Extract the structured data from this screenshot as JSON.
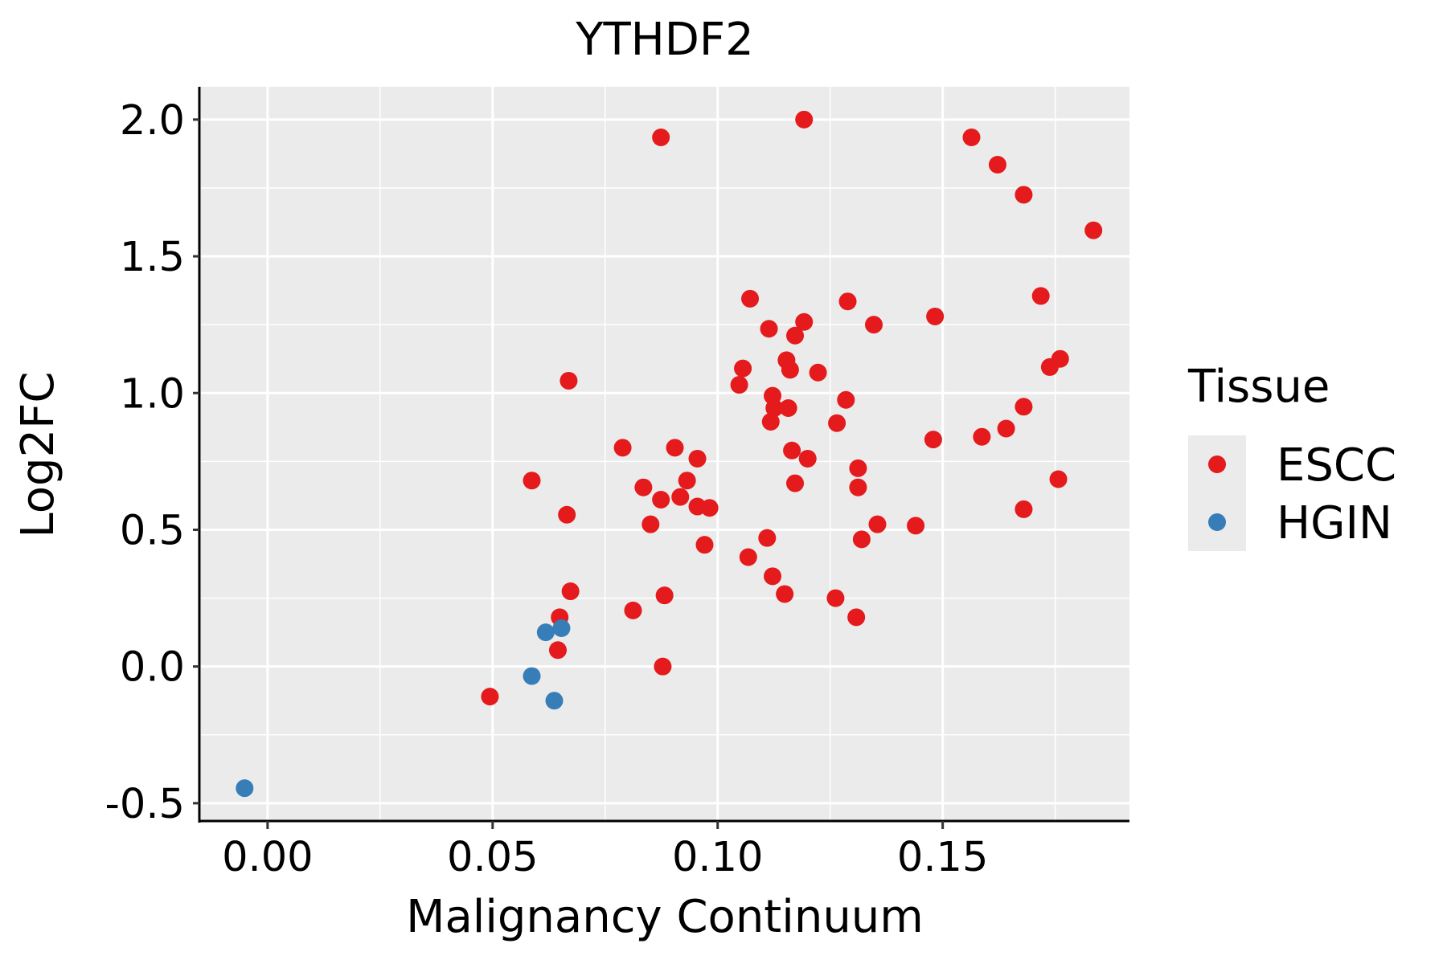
{
  "chart_data": {
    "type": "scatter",
    "title": "YTHDF2",
    "xlabel": "Malignancy Continuum",
    "ylabel": "Log2FC",
    "xlim": [
      -0.0148,
      0.1915
    ],
    "ylim": [
      -0.565,
      2.12
    ],
    "x_ticks": [
      0.0,
      0.05,
      0.1,
      0.15
    ],
    "x_tick_labels": [
      "0.00",
      "0.05",
      "0.10",
      "0.15"
    ],
    "y_ticks": [
      -0.5,
      0.0,
      0.5,
      1.0,
      1.5,
      2.0
    ],
    "y_tick_labels": [
      "-0.5",
      "0.0",
      "0.5",
      "1.0",
      "1.5",
      "2.0"
    ],
    "grid": true,
    "legend": {
      "title": "Tissue",
      "position": "right",
      "entries": [
        {
          "label": "ESCC",
          "color": "#E41A1C"
        },
        {
          "label": "HGIN",
          "color": "#377EB8"
        }
      ]
    },
    "series": [
      {
        "name": "ESCC",
        "color": "#E41A1C",
        "points": [
          [
            0.0874,
            1.935
          ],
          [
            0.1192,
            2.0
          ],
          [
            0.1564,
            1.935
          ],
          [
            0.1622,
            1.835
          ],
          [
            0.168,
            1.725
          ],
          [
            0.1835,
            1.595
          ],
          [
            0.1072,
            1.345
          ],
          [
            0.1289,
            1.335
          ],
          [
            0.1718,
            1.355
          ],
          [
            0.1114,
            1.235
          ],
          [
            0.1192,
            1.26
          ],
          [
            0.1172,
            1.21
          ],
          [
            0.1347,
            1.25
          ],
          [
            0.1483,
            1.28
          ],
          [
            0.1153,
            1.12
          ],
          [
            0.1761,
            1.125
          ],
          [
            0.1738,
            1.095
          ],
          [
            0.1056,
            1.09
          ],
          [
            0.1161,
            1.085
          ],
          [
            0.1223,
            1.075
          ],
          [
            0.0669,
            1.045
          ],
          [
            0.1048,
            1.03
          ],
          [
            0.1122,
            0.99
          ],
          [
            0.1126,
            0.945
          ],
          [
            0.1157,
            0.945
          ],
          [
            0.1285,
            0.975
          ],
          [
            0.168,
            0.95
          ],
          [
            0.1118,
            0.895
          ],
          [
            0.1265,
            0.89
          ],
          [
            0.1587,
            0.84
          ],
          [
            0.1641,
            0.87
          ],
          [
            0.1479,
            0.83
          ],
          [
            0.0789,
            0.8
          ],
          [
            0.0905,
            0.8
          ],
          [
            0.1165,
            0.79
          ],
          [
            0.12,
            0.76
          ],
          [
            0.0955,
            0.76
          ],
          [
            0.1312,
            0.725
          ],
          [
            0.0587,
            0.68
          ],
          [
            0.0835,
            0.655
          ],
          [
            0.0932,
            0.68
          ],
          [
            0.1172,
            0.67
          ],
          [
            0.1312,
            0.655
          ],
          [
            0.1757,
            0.685
          ],
          [
            0.0874,
            0.61
          ],
          [
            0.0917,
            0.62
          ],
          [
            0.0955,
            0.585
          ],
          [
            0.0982,
            0.58
          ],
          [
            0.0665,
            0.555
          ],
          [
            0.0851,
            0.52
          ],
          [
            0.168,
            0.575
          ],
          [
            0.1355,
            0.52
          ],
          [
            0.144,
            0.515
          ],
          [
            0.111,
            0.47
          ],
          [
            0.132,
            0.465
          ],
          [
            0.0971,
            0.445
          ],
          [
            0.1068,
            0.4
          ],
          [
            0.0673,
            0.275
          ],
          [
            0.0882,
            0.26
          ],
          [
            0.1122,
            0.33
          ],
          [
            0.1149,
            0.265
          ],
          [
            0.1262,
            0.25
          ],
          [
            0.0812,
            0.205
          ],
          [
            0.0649,
            0.18
          ],
          [
            0.1308,
            0.18
          ],
          [
            0.0645,
            0.06
          ],
          [
            0.0878,
            0.0
          ],
          [
            0.0494,
            -0.11
          ]
        ]
      },
      {
        "name": "HGIN",
        "color": "#377EB8",
        "points": [
          [
            0.0618,
            0.125
          ],
          [
            0.0653,
            0.14
          ],
          [
            0.0587,
            -0.035
          ],
          [
            0.0637,
            -0.125
          ],
          [
            -0.0051,
            -0.445
          ]
        ]
      }
    ]
  }
}
